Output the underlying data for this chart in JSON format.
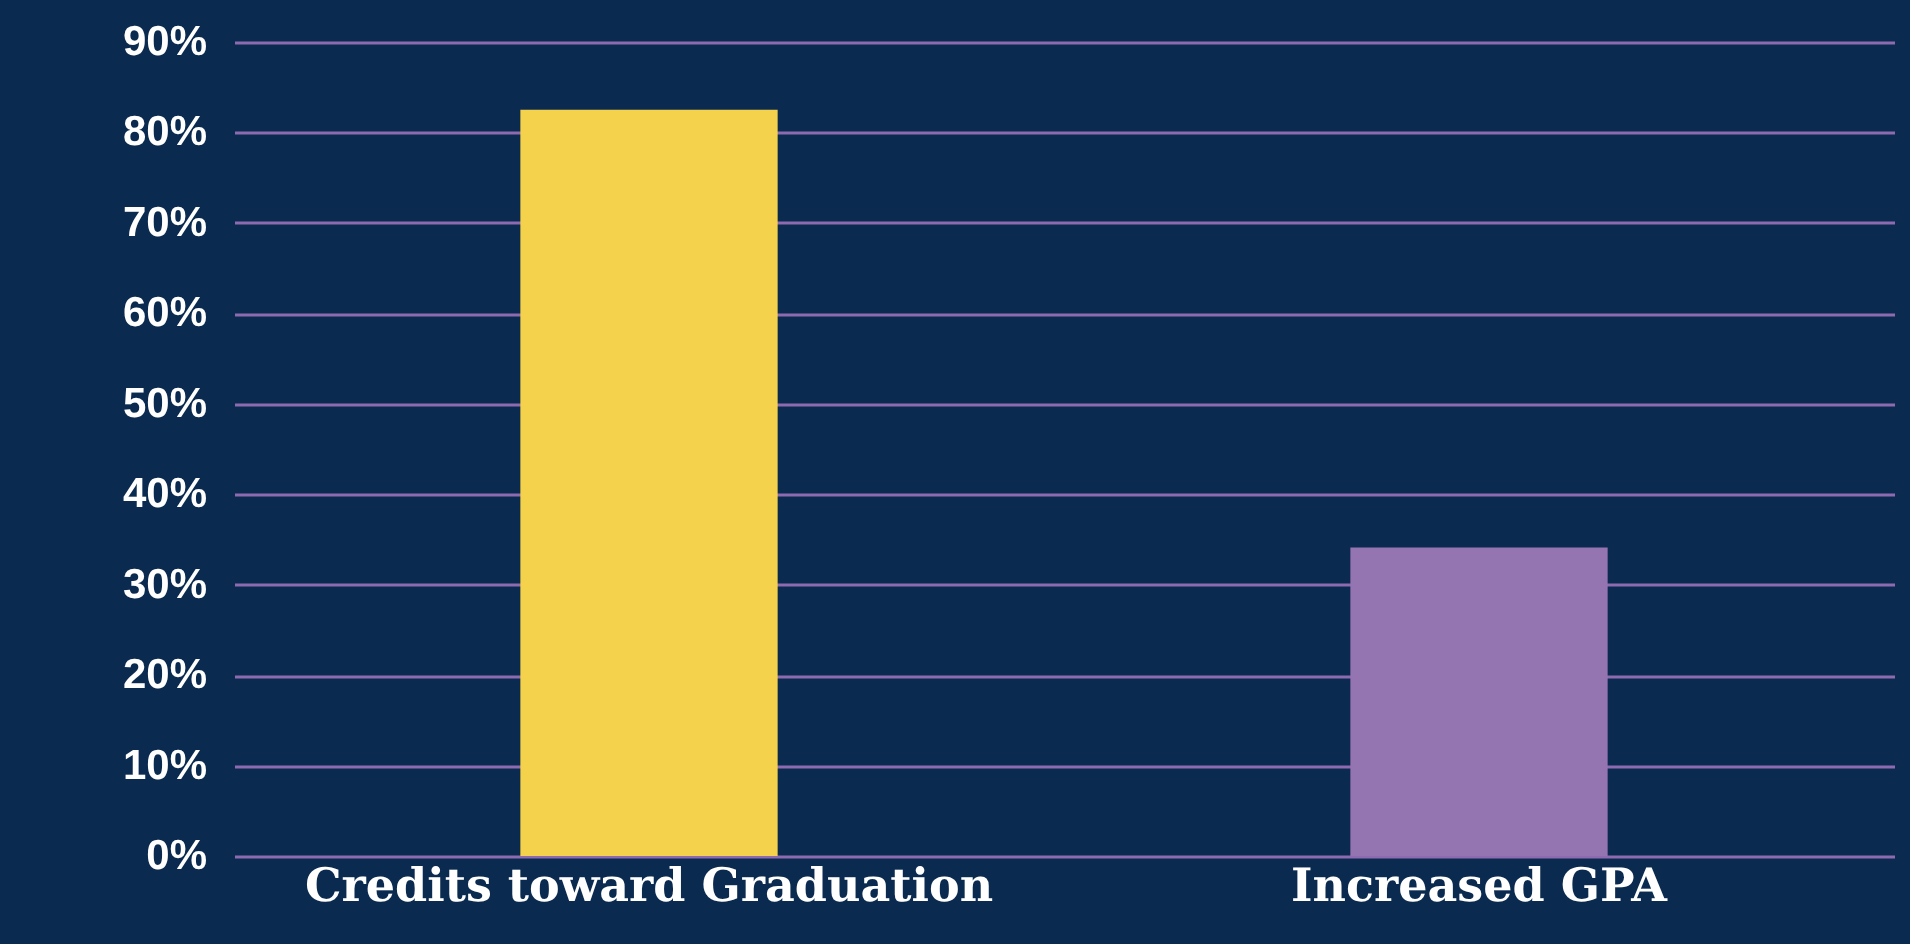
{
  "chart_data": {
    "type": "bar",
    "categories": [
      "Credits toward Graduation",
      "Increased GPA"
    ],
    "values": [
      82.5,
      34.1
    ],
    "colors": [
      "#f5d24c",
      "#9574b2"
    ],
    "ylim": [
      0,
      90
    ],
    "yticks": [
      {
        "value": 0,
        "label": "0%"
      },
      {
        "value": 10,
        "label": "10%"
      },
      {
        "value": 20,
        "label": "20%"
      },
      {
        "value": 30,
        "label": "30%"
      },
      {
        "value": 40,
        "label": "40%"
      },
      {
        "value": 50,
        "label": "50%"
      },
      {
        "value": 60,
        "label": "60%"
      },
      {
        "value": 70,
        "label": "70%"
      },
      {
        "value": 80,
        "label": "80%"
      },
      {
        "value": 90,
        "label": "90%"
      }
    ],
    "grid": "y"
  }
}
